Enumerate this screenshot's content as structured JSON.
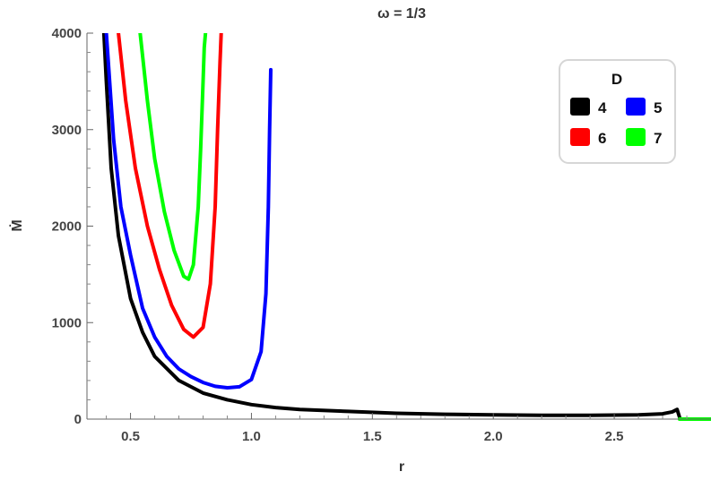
{
  "chart_data": {
    "type": "line",
    "title": "ω = 1/3",
    "xlabel": "r",
    "ylabel": "Ṁ",
    "xlim": [
      0.32,
      2.9
    ],
    "ylim": [
      0,
      4000
    ],
    "xticks": [
      0.5,
      1.0,
      1.5,
      2.0,
      2.5
    ],
    "xtick_labels": [
      "0.5",
      "1.0",
      "1.5",
      "2.0",
      "2.5"
    ],
    "yticks": [
      0,
      1000,
      2000,
      3000,
      4000
    ],
    "ytick_labels": [
      "0",
      "1000",
      "2000",
      "3000",
      "4000"
    ],
    "grid": false,
    "legend": {
      "title": "D",
      "position": "top-right",
      "columns": 2
    },
    "series": [
      {
        "name": "4",
        "color": "#000000",
        "x": [
          0.39,
          0.4,
          0.42,
          0.45,
          0.5,
          0.55,
          0.6,
          0.7,
          0.8,
          0.9,
          1.0,
          1.1,
          1.2,
          1.4,
          1.6,
          1.8,
          2.0,
          2.2,
          2.4,
          2.6,
          2.7,
          2.74,
          2.76,
          2.77
        ],
        "y": [
          4000,
          3500,
          2600,
          1900,
          1250,
          900,
          650,
          400,
          270,
          200,
          150,
          120,
          100,
          80,
          60,
          50,
          45,
          40,
          40,
          45,
          55,
          75,
          100,
          20
        ]
      },
      {
        "name": "5",
        "color": "#0000ff",
        "x": [
          0.4,
          0.43,
          0.46,
          0.5,
          0.55,
          0.6,
          0.65,
          0.7,
          0.75,
          0.8,
          0.85,
          0.9,
          0.95,
          1.0,
          1.04,
          1.06,
          1.07,
          1.075,
          1.08
        ],
        "y": [
          4000,
          2900,
          2200,
          1700,
          1150,
          850,
          650,
          520,
          440,
          380,
          340,
          325,
          335,
          410,
          700,
          1300,
          2200,
          3000,
          3620
        ]
      },
      {
        "name": "6",
        "color": "#ff0000",
        "x": [
          0.45,
          0.48,
          0.52,
          0.57,
          0.62,
          0.67,
          0.72,
          0.76,
          0.8,
          0.83,
          0.85,
          0.86,
          0.87,
          0.875
        ],
        "y": [
          4000,
          3300,
          2600,
          2000,
          1550,
          1180,
          930,
          850,
          950,
          1400,
          2200,
          3000,
          3700,
          4000
        ]
      },
      {
        "name": "7",
        "color": "#00ff00",
        "x": [
          0.54,
          0.57,
          0.6,
          0.64,
          0.68,
          0.72,
          0.74,
          0.76,
          0.78,
          0.79,
          0.8,
          0.805,
          0.81
        ],
        "y": [
          4000,
          3300,
          2700,
          2150,
          1750,
          1480,
          1450,
          1600,
          2200,
          2800,
          3500,
          3850,
          4000
        ]
      },
      {
        "name": "7",
        "color": "#00ff00",
        "legend": false,
        "x": [
          2.77,
          2.9
        ],
        "y": [
          0,
          0
        ]
      }
    ]
  }
}
